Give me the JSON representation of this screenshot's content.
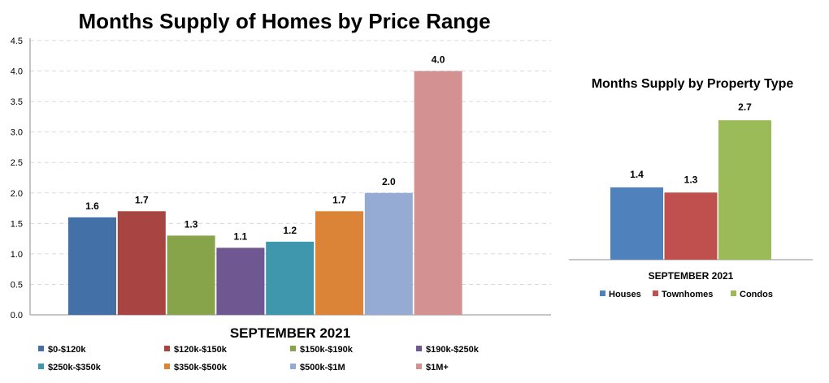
{
  "chart_data": [
    {
      "type": "bar",
      "title": "Months Supply of Homes by Price Range",
      "xlabel": "SEPTEMBER 2021",
      "ylabel": "",
      "ylim": [
        0,
        4.5
      ],
      "yticks": [
        "0.0",
        "0.5",
        "1.0",
        "1.5",
        "2.0",
        "2.5",
        "3.0",
        "3.5",
        "4.0",
        "4.5"
      ],
      "grid": true,
      "legend_position": "bottom",
      "categories": [
        "SEPTEMBER 2021"
      ],
      "series": [
        {
          "name": "$0-$120k",
          "values": [
            1.6
          ],
          "label": "1.6",
          "color": "#4470a8"
        },
        {
          "name": "$120k-$150k",
          "values": [
            1.7
          ],
          "label": "1.7",
          "color": "#a84442"
        },
        {
          "name": "$150k-$190k",
          "values": [
            1.3
          ],
          "label": "1.3",
          "color": "#87a44b"
        },
        {
          "name": "$190k-$250k",
          "values": [
            1.1
          ],
          "label": "1.1",
          "color": "#6f5892"
        },
        {
          "name": "$250k-$350k",
          "values": [
            1.2
          ],
          "label": "1.2",
          "color": "#3e97ad"
        },
        {
          "name": "$350k-$500k",
          "values": [
            1.7
          ],
          "label": "1.7",
          "color": "#db8437"
        },
        {
          "name": "$500k-$1M",
          "values": [
            2.0
          ],
          "label": "2.0",
          "color": "#96abd4"
        },
        {
          "name": "$1M+",
          "values": [
            4.0
          ],
          "label": "4.0",
          "color": "#d39291"
        }
      ]
    },
    {
      "type": "bar",
      "title": "Months Supply by Property Type",
      "xlabel": "SEPTEMBER 2021",
      "ylabel": "",
      "ylim": [
        0,
        3.3
      ],
      "grid": false,
      "legend_position": "bottom",
      "categories": [
        "SEPTEMBER 2021"
      ],
      "series": [
        {
          "name": "Houses",
          "values": [
            1.4
          ],
          "label": "1.4",
          "color": "#4f81bd"
        },
        {
          "name": "Townhomes",
          "values": [
            1.3
          ],
          "label": "1.3",
          "color": "#c0504d"
        },
        {
          "name": "Condos",
          "values": [
            2.7
          ],
          "label": "2.7",
          "color": "#9bbb59"
        }
      ]
    }
  ]
}
